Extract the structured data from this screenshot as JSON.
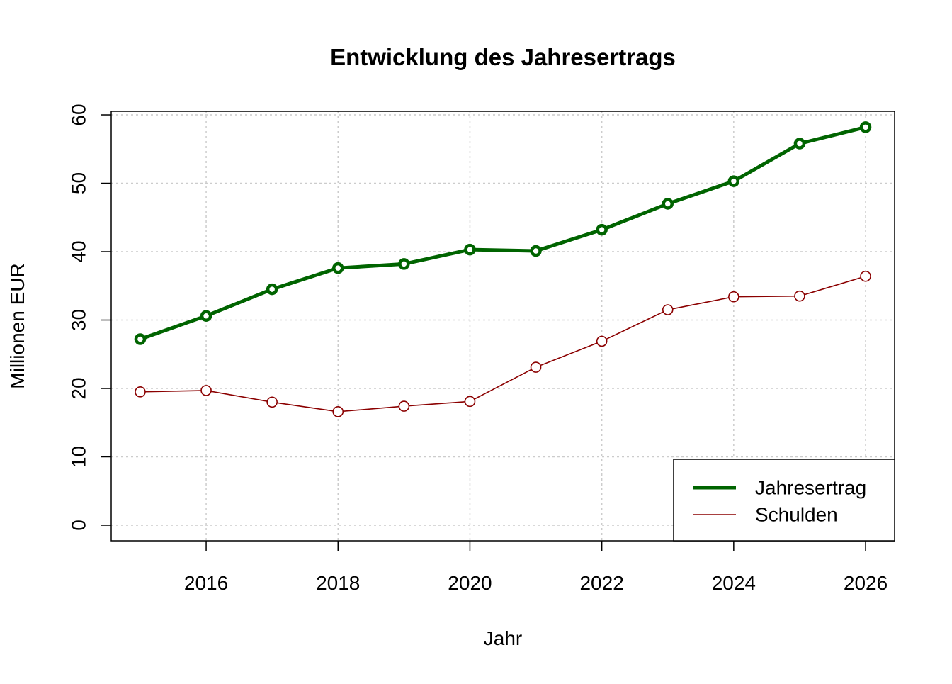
{
  "chart_data": {
    "type": "line",
    "title": "Entwicklung des Jahresertrags",
    "x_label": "Jahr",
    "y_label": "Millionen EUR",
    "x": [
      2015,
      2016,
      2017,
      2018,
      2019,
      2020,
      2021,
      2022,
      2023,
      2024,
      2025,
      2026
    ],
    "series": [
      {
        "name": "Jahresertrag",
        "color": "#006400",
        "line_width": 5,
        "values": [
          27.2,
          30.6,
          34.5,
          37.6,
          38.2,
          40.3,
          40.1,
          43.2,
          47.0,
          50.3,
          55.8,
          58.2
        ]
      },
      {
        "name": "Schulden",
        "color": "#8b0000",
        "line_width": 1.6,
        "values": [
          19.5,
          19.7,
          18.0,
          16.6,
          17.4,
          18.1,
          23.1,
          26.9,
          31.5,
          33.4,
          33.5,
          36.4
        ]
      }
    ],
    "xlim": [
      2014.56,
      2026.44
    ],
    "ylim": [
      -2.28,
      60.52
    ],
    "xticks": [
      2016,
      2018,
      2020,
      2022,
      2024,
      2026
    ],
    "yticks": [
      0,
      10,
      20,
      30,
      40,
      50,
      60
    ],
    "grid": true,
    "legend": "bottomright"
  }
}
